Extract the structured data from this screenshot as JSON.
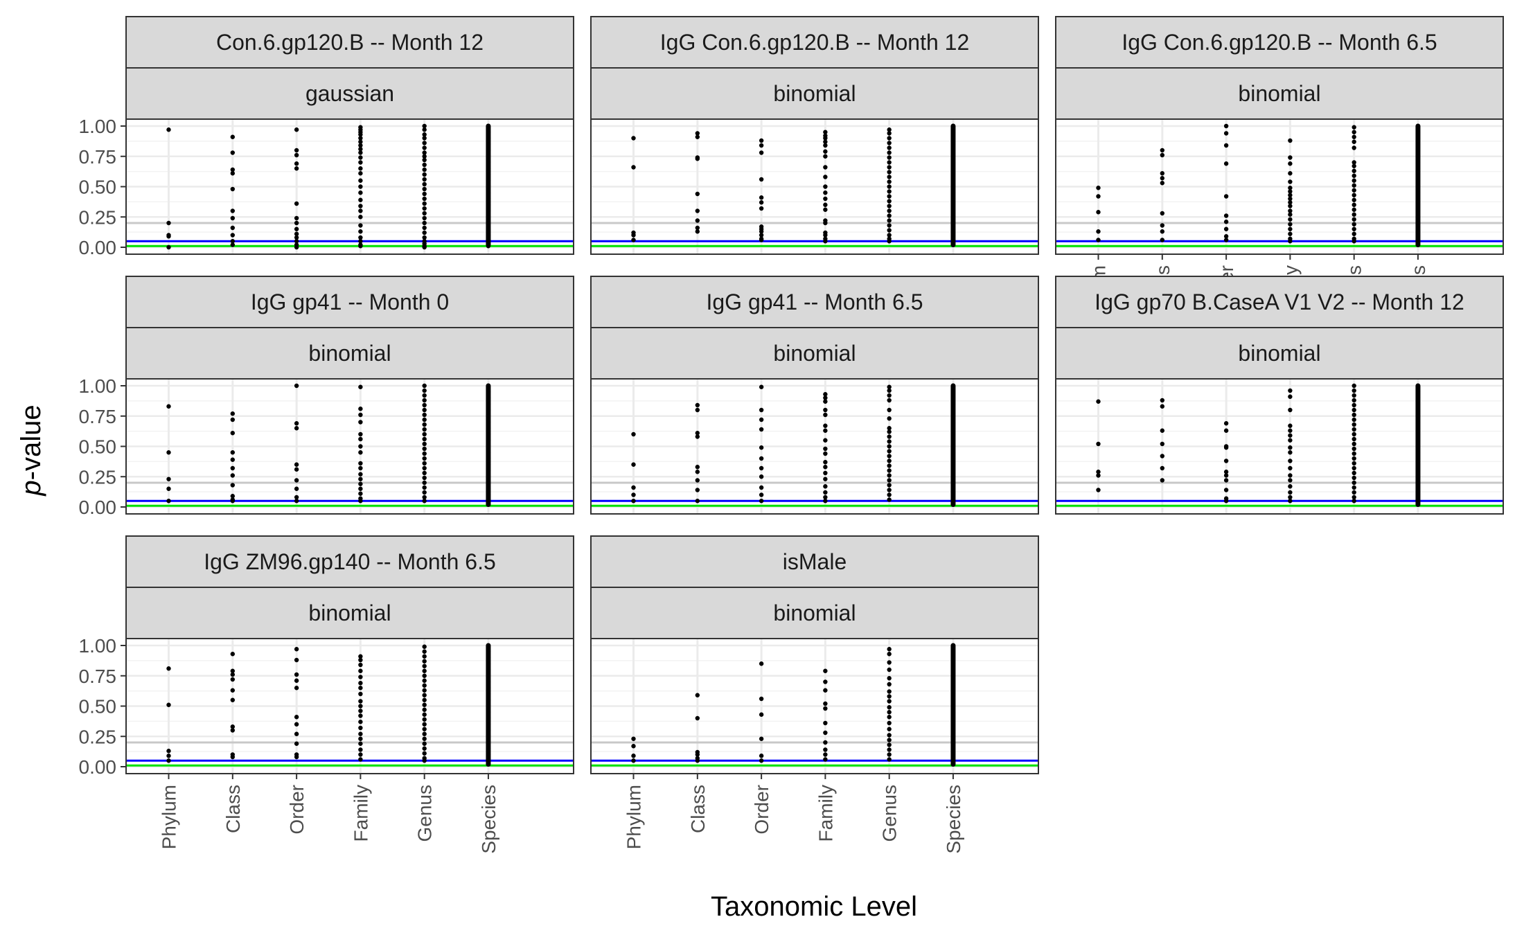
{
  "chart_data": {
    "type": "scatter",
    "xlabel": "Taxonomic Level",
    "ylabel_italic": "p",
    "ylabel_rest": "-value",
    "categories": [
      "Phylum",
      "Class",
      "Order",
      "Family",
      "Genus",
      "Species"
    ],
    "y_ticks": [
      "0.00",
      "0.25",
      "0.50",
      "0.75",
      "1.00"
    ],
    "ylim": [
      0,
      1
    ],
    "reference_lines": [
      {
        "y": 0.2,
        "color": "#c8c8c8"
      },
      {
        "y": 0.05,
        "color": "#0000ff"
      },
      {
        "y": 0.01,
        "color": "#00e000"
      }
    ],
    "grid": true,
    "panels": [
      {
        "title": "Con.6.gp120.B -- Month 12",
        "family": "gaussian",
        "points": [
          [
            0.97,
            0.2,
            0.1,
            0.09,
            0.0
          ],
          [
            0.91,
            0.78,
            0.64,
            0.61,
            0.48,
            0.3,
            0.24,
            0.16,
            0.1,
            0.05,
            0.02
          ],
          [
            0.97,
            0.8,
            0.76,
            0.69,
            0.65,
            0.36,
            0.24,
            0.2,
            0.15,
            0.11,
            0.08,
            0.05,
            0.02,
            0.0
          ],
          [
            0.99,
            0.97,
            0.95,
            0.93,
            0.9,
            0.87,
            0.84,
            0.81,
            0.78,
            0.74,
            0.7,
            0.65,
            0.61,
            0.55,
            0.5,
            0.45,
            0.39,
            0.34,
            0.3,
            0.25,
            0.18,
            0.13,
            0.08,
            0.05,
            0.02,
            0.01
          ],
          [
            1.0,
            0.97,
            0.93,
            0.9,
            0.86,
            0.82,
            0.78,
            0.75,
            0.72,
            0.68,
            0.64,
            0.6,
            0.56,
            0.52,
            0.48,
            0.44,
            0.4,
            0.36,
            0.32,
            0.28,
            0.24,
            0.2,
            0.16,
            0.12,
            0.08,
            0.05,
            0.03,
            0.01,
            0.0
          ],
          [
            1.0,
            0.95,
            0.9,
            0.85,
            0.8,
            0.75,
            0.7,
            0.65,
            0.6,
            0.55,
            0.5,
            0.45,
            0.4,
            0.35,
            0.3,
            0.25,
            0.2,
            0.15,
            0.1,
            0.05,
            0.01
          ]
        ]
      },
      {
        "title": "IgG Con.6.gp120.B -- Month 12",
        "family": "binomial",
        "points": [
          [
            0.9,
            0.66,
            0.12,
            0.1,
            0.06
          ],
          [
            0.94,
            0.91,
            0.74,
            0.73,
            0.44,
            0.3,
            0.22,
            0.16,
            0.13
          ],
          [
            0.88,
            0.84,
            0.78,
            0.56,
            0.41,
            0.37,
            0.32,
            0.17,
            0.15,
            0.13,
            0.1,
            0.07,
            0.06
          ],
          [
            0.95,
            0.92,
            0.9,
            0.87,
            0.84,
            0.79,
            0.75,
            0.66,
            0.58,
            0.5,
            0.45,
            0.4,
            0.35,
            0.31,
            0.22,
            0.2,
            0.12,
            0.1,
            0.07,
            0.05
          ],
          [
            0.97,
            0.94,
            0.9,
            0.86,
            0.82,
            0.78,
            0.74,
            0.7,
            0.66,
            0.62,
            0.58,
            0.54,
            0.5,
            0.46,
            0.42,
            0.38,
            0.34,
            0.3,
            0.26,
            0.22,
            0.18,
            0.14,
            0.1,
            0.07,
            0.05
          ],
          [
            1.0,
            0.95,
            0.9,
            0.85,
            0.8,
            0.75,
            0.7,
            0.65,
            0.6,
            0.55,
            0.5,
            0.45,
            0.4,
            0.35,
            0.3,
            0.25,
            0.2,
            0.15,
            0.1,
            0.05
          ]
        ]
      },
      {
        "title": "IgG Con.6.gp120.B -- Month 6.5",
        "family": "binomial",
        "points": [
          [
            0.49,
            0.42,
            0.29,
            0.13,
            0.06
          ],
          [
            0.8,
            0.76,
            0.61,
            0.57,
            0.53,
            0.28,
            0.18,
            0.13,
            0.06
          ],
          [
            1.0,
            0.94,
            0.84,
            0.69,
            0.42,
            0.26,
            0.21,
            0.15,
            0.09,
            0.06
          ],
          [
            0.88,
            0.74,
            0.69,
            0.61,
            0.54,
            0.49,
            0.46,
            0.43,
            0.4,
            0.37,
            0.34,
            0.3,
            0.27,
            0.23,
            0.19,
            0.15,
            0.11,
            0.07,
            0.05
          ],
          [
            0.99,
            0.95,
            0.91,
            0.87,
            0.82,
            0.7,
            0.67,
            0.63,
            0.59,
            0.55,
            0.51,
            0.47,
            0.43,
            0.39,
            0.35,
            0.31,
            0.27,
            0.23,
            0.19,
            0.15,
            0.11,
            0.07,
            0.05
          ],
          [
            1.0,
            0.95,
            0.9,
            0.85,
            0.8,
            0.75,
            0.7,
            0.65,
            0.6,
            0.55,
            0.5,
            0.45,
            0.4,
            0.35,
            0.3,
            0.25,
            0.2,
            0.15,
            0.1,
            0.05
          ]
        ]
      },
      {
        "title": "IgG gp41 -- Month 0",
        "family": "binomial",
        "points": [
          [
            0.83,
            0.45,
            0.23,
            0.15,
            0.05
          ],
          [
            0.77,
            0.72,
            0.61,
            0.45,
            0.39,
            0.32,
            0.26,
            0.18,
            0.09,
            0.06,
            0.05
          ],
          [
            1.0,
            0.69,
            0.65,
            0.35,
            0.31,
            0.22,
            0.15,
            0.08,
            0.05
          ],
          [
            0.99,
            0.81,
            0.76,
            0.7,
            0.6,
            0.56,
            0.5,
            0.45,
            0.36,
            0.32,
            0.27,
            0.23,
            0.19,
            0.15,
            0.11,
            0.07,
            0.05
          ],
          [
            1.0,
            0.96,
            0.92,
            0.88,
            0.84,
            0.8,
            0.76,
            0.72,
            0.68,
            0.64,
            0.6,
            0.56,
            0.52,
            0.48,
            0.44,
            0.4,
            0.36,
            0.32,
            0.28,
            0.24,
            0.2,
            0.16,
            0.12,
            0.08,
            0.05
          ],
          [
            1.0,
            0.95,
            0.9,
            0.85,
            0.8,
            0.75,
            0.7,
            0.65,
            0.6,
            0.55,
            0.5,
            0.45,
            0.4,
            0.35,
            0.3,
            0.25,
            0.2,
            0.15,
            0.1,
            0.05
          ]
        ]
      },
      {
        "title": "IgG gp41 -- Month 6.5",
        "family": "binomial",
        "points": [
          [
            0.6,
            0.35,
            0.16,
            0.1,
            0.05
          ],
          [
            0.84,
            0.8,
            0.61,
            0.58,
            0.33,
            0.29,
            0.22,
            0.14,
            0.05
          ],
          [
            0.99,
            0.8,
            0.72,
            0.64,
            0.49,
            0.4,
            0.32,
            0.25,
            0.16,
            0.1,
            0.05
          ],
          [
            0.93,
            0.9,
            0.87,
            0.8,
            0.76,
            0.67,
            0.63,
            0.55,
            0.48,
            0.44,
            0.37,
            0.33,
            0.28,
            0.23,
            0.17,
            0.12,
            0.08,
            0.05
          ],
          [
            0.99,
            0.96,
            0.92,
            0.88,
            0.8,
            0.73,
            0.65,
            0.62,
            0.58,
            0.54,
            0.5,
            0.46,
            0.42,
            0.38,
            0.34,
            0.3,
            0.26,
            0.22,
            0.18,
            0.14,
            0.1,
            0.06
          ],
          [
            1.0,
            0.95,
            0.9,
            0.85,
            0.8,
            0.75,
            0.7,
            0.65,
            0.6,
            0.55,
            0.5,
            0.45,
            0.4,
            0.35,
            0.3,
            0.25,
            0.2,
            0.15,
            0.1,
            0.05
          ]
        ]
      },
      {
        "title": "IgG gp70 B.CaseA V1 V2 -- Month 12",
        "family": "binomial",
        "points": [
          [
            0.87,
            0.52,
            0.29,
            0.26,
            0.14
          ],
          [
            0.88,
            0.83,
            0.63,
            0.52,
            0.42,
            0.32,
            0.22
          ],
          [
            0.69,
            0.63,
            0.5,
            0.49,
            0.38,
            0.29,
            0.26,
            0.22,
            0.14,
            0.07,
            0.05
          ],
          [
            0.96,
            0.91,
            0.8,
            0.67,
            0.63,
            0.59,
            0.55,
            0.49,
            0.45,
            0.38,
            0.32,
            0.26,
            0.22,
            0.17,
            0.12,
            0.08,
            0.05
          ],
          [
            1.0,
            0.96,
            0.92,
            0.88,
            0.84,
            0.8,
            0.76,
            0.72,
            0.68,
            0.64,
            0.6,
            0.56,
            0.52,
            0.48,
            0.44,
            0.4,
            0.36,
            0.32,
            0.28,
            0.24,
            0.2,
            0.16,
            0.12,
            0.08,
            0.05
          ],
          [
            1.0,
            0.95,
            0.9,
            0.85,
            0.8,
            0.75,
            0.7,
            0.65,
            0.6,
            0.55,
            0.5,
            0.45,
            0.4,
            0.35,
            0.3,
            0.25,
            0.2,
            0.15,
            0.1,
            0.05
          ]
        ]
      },
      {
        "title": "IgG ZM96.gp140 -- Month 6.5",
        "family": "binomial",
        "points": [
          [
            0.81,
            0.51,
            0.13,
            0.09,
            0.05
          ],
          [
            0.93,
            0.79,
            0.76,
            0.72,
            0.63,
            0.55,
            0.33,
            0.3,
            0.1,
            0.08
          ],
          [
            0.97,
            0.88,
            0.76,
            0.71,
            0.65,
            0.41,
            0.35,
            0.27,
            0.19,
            0.1,
            0.08
          ],
          [
            0.91,
            0.88,
            0.84,
            0.79,
            0.74,
            0.69,
            0.65,
            0.6,
            0.54,
            0.5,
            0.46,
            0.42,
            0.37,
            0.32,
            0.27,
            0.23,
            0.19,
            0.14,
            0.1,
            0.06
          ],
          [
            0.99,
            0.95,
            0.91,
            0.87,
            0.83,
            0.79,
            0.75,
            0.71,
            0.67,
            0.63,
            0.59,
            0.55,
            0.51,
            0.47,
            0.43,
            0.39,
            0.35,
            0.31,
            0.27,
            0.23,
            0.19,
            0.15,
            0.11,
            0.07,
            0.05
          ],
          [
            1.0,
            0.95,
            0.9,
            0.85,
            0.8,
            0.75,
            0.7,
            0.65,
            0.6,
            0.55,
            0.5,
            0.45,
            0.4,
            0.35,
            0.3,
            0.25,
            0.2,
            0.15,
            0.1,
            0.05
          ]
        ]
      },
      {
        "title": "isMale",
        "family": "binomial",
        "points": [
          [
            0.23,
            0.17,
            0.09,
            0.05
          ],
          [
            0.59,
            0.4,
            0.12,
            0.1,
            0.07,
            0.05
          ],
          [
            0.85,
            0.56,
            0.43,
            0.23,
            0.09,
            0.05
          ],
          [
            0.79,
            0.7,
            0.63,
            0.52,
            0.48,
            0.36,
            0.28,
            0.2,
            0.14,
            0.1,
            0.06
          ],
          [
            0.97,
            0.93,
            0.86,
            0.8,
            0.73,
            0.68,
            0.62,
            0.58,
            0.54,
            0.49,
            0.45,
            0.41,
            0.36,
            0.31,
            0.26,
            0.22,
            0.18,
            0.14,
            0.1,
            0.06
          ],
          [
            1.0,
            0.95,
            0.9,
            0.85,
            0.8,
            0.75,
            0.7,
            0.65,
            0.6,
            0.55,
            0.5,
            0.45,
            0.4,
            0.35,
            0.3,
            0.25,
            0.2,
            0.15,
            0.1,
            0.05
          ]
        ]
      }
    ]
  }
}
